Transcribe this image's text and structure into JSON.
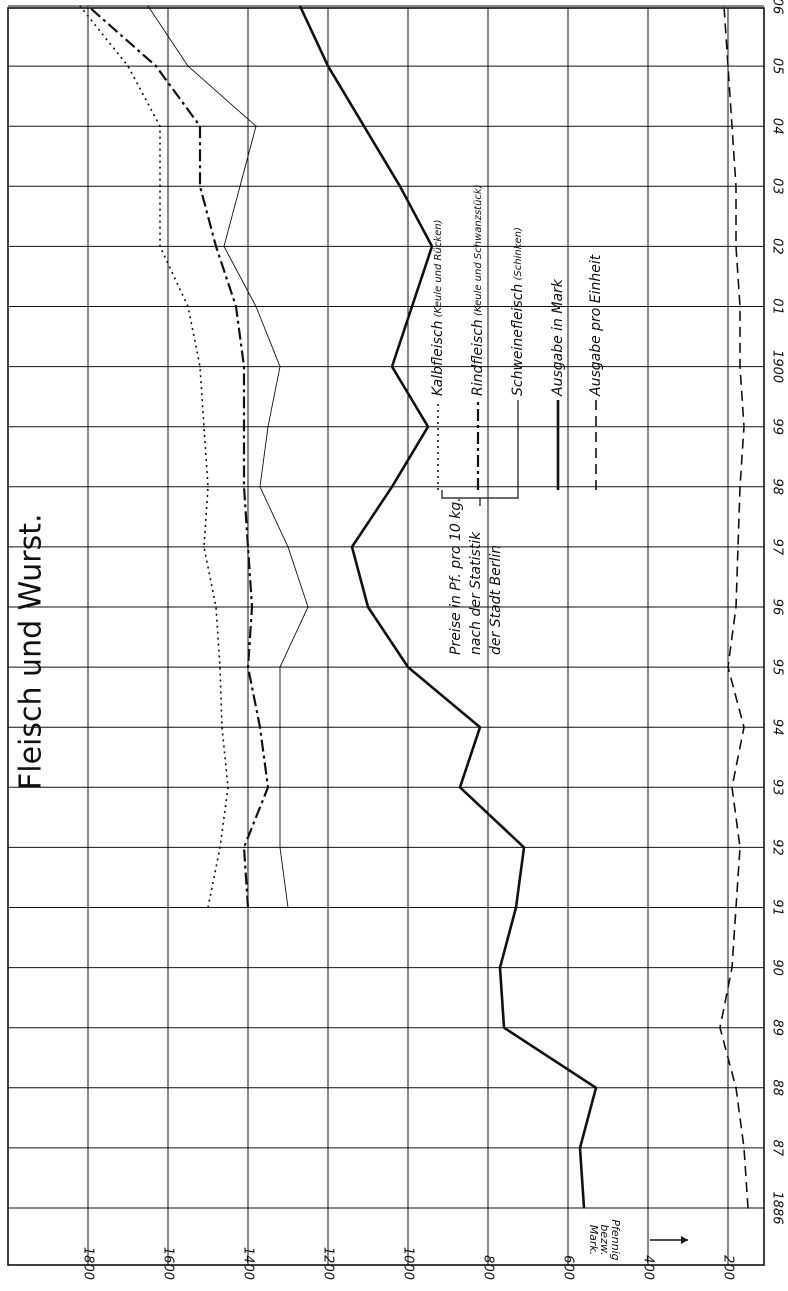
{
  "chart_data": {
    "type": "line",
    "orientation": "rotated 90° clockwise (year axis runs top-to-bottom on the right)",
    "title": "Fleisch und Wurst.",
    "x": [
      "1886",
      "87",
      "88",
      "89",
      "90",
      "91",
      "92",
      "93",
      "94",
      "95",
      "96",
      "97",
      "98",
      "99",
      "1900",
      "01",
      "02",
      "03",
      "04",
      "05",
      "06"
    ],
    "y_ticks": [
      "200",
      "400",
      "600",
      "800",
      "1000",
      "1200",
      "1400",
      "1600",
      "1800"
    ],
    "ylabel": "Pfennig bezw. Mark.",
    "ylim": [
      0,
      1870
    ],
    "grid": true,
    "note": "Preise in Pf. pro 10 kg. nach der Statistik der Stadt Berlin",
    "series": [
      {
        "name": "Kalbfleisch",
        "name_detail": "(Keule und Rücken)",
        "style": "dotted",
        "values": [
          null,
          null,
          null,
          null,
          null,
          1500,
          1470,
          1450,
          1465,
          1470,
          1480,
          1510,
          1500,
          1510,
          1520,
          1550,
          1620,
          1620,
          1620,
          1700,
          1820
        ]
      },
      {
        "name": "Rindfleisch",
        "name_detail": "(Keule und Schwanzstück)",
        "style": "dash-dot",
        "values": [
          null,
          null,
          null,
          null,
          null,
          1400,
          1410,
          1350,
          1370,
          1400,
          1390,
          1400,
          1410,
          1410,
          1410,
          1430,
          1480,
          1520,
          1520,
          1630,
          1800
        ]
      },
      {
        "name": "Schweinefleisch",
        "name_detail": "(Schinken)",
        "style": "thin-solid",
        "values": [
          null,
          null,
          null,
          null,
          null,
          1300,
          1320,
          1320,
          1320,
          1320,
          1250,
          1300,
          1370,
          1350,
          1320,
          1380,
          1460,
          1420,
          1380,
          1550,
          1650
        ]
      },
      {
        "name": "Ausgabe in Mark",
        "name_detail": "",
        "style": "thick-solid",
        "values": [
          560,
          570,
          530,
          760,
          770,
          730,
          710,
          870,
          820,
          1000,
          1100,
          1140,
          1040,
          950,
          1040,
          990,
          940,
          1020,
          1110,
          1200,
          1270
        ]
      },
      {
        "name": "Ausgabe pro Einheit",
        "name_detail": "",
        "style": "dashed",
        "values": [
          150,
          160,
          180,
          220,
          190,
          180,
          170,
          190,
          160,
          200,
          180,
          175,
          170,
          160,
          170,
          170,
          180,
          180,
          190,
          200,
          210
        ]
      }
    ]
  }
}
